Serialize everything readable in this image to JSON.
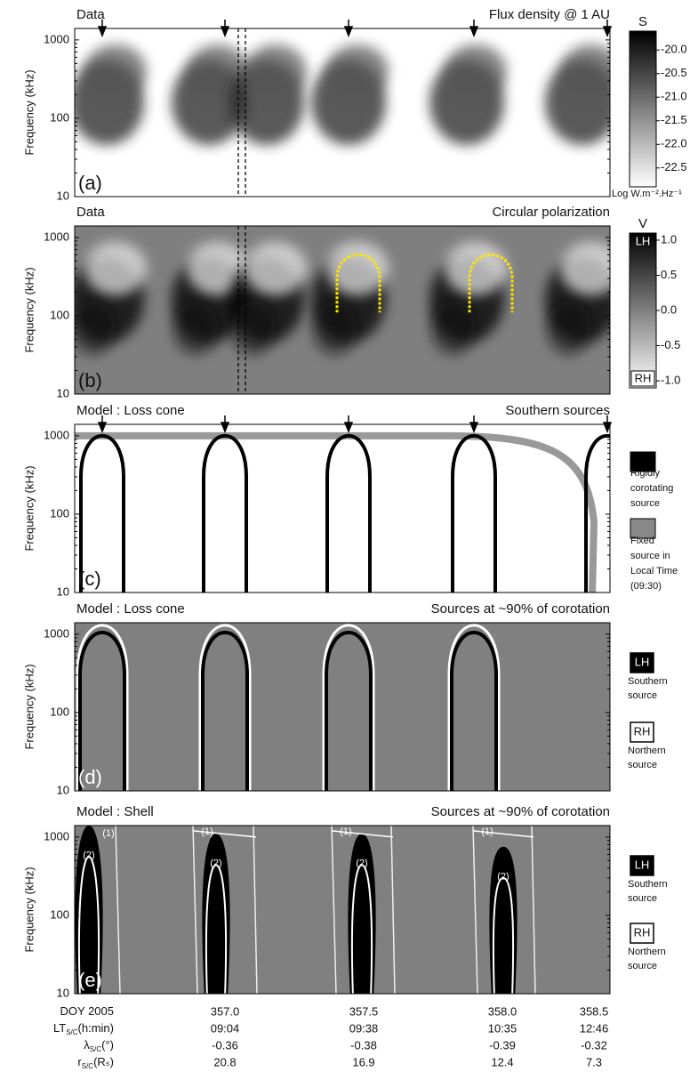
{
  "figure": {
    "panels": [
      {
        "letter": "(a)",
        "title_left": "Data",
        "title_right": "Flux density @ 1 AU",
        "ylabel": "Frequency (kHz)",
        "ylim": [
          10,
          1400
        ],
        "yticks": [
          10,
          100,
          1000
        ],
        "log": true
      },
      {
        "letter": "(b)",
        "title_left": "Data",
        "title_right": "Circular polarization",
        "ylabel": "Frequency (kHz)",
        "ylim": [
          10,
          1400
        ],
        "yticks": [
          10,
          100,
          1000
        ],
        "log": true
      },
      {
        "letter": "(c)",
        "title_left": "Model : Loss cone",
        "title_right": "Southern sources",
        "ylabel": "Frequency (kHz)",
        "ylim": [
          10,
          1400
        ],
        "yticks": [
          10,
          100,
          1000
        ],
        "log": true
      },
      {
        "letter": "(d)",
        "title_left": "Model : Loss cone",
        "title_right": "Sources at ~90% of corotation",
        "ylabel": "Frequency (kHz)",
        "ylim": [
          10,
          1400
        ],
        "yticks": [
          10,
          100,
          1000
        ],
        "log": true
      },
      {
        "letter": "(e)",
        "title_left": "Model : Shell",
        "title_right": "Sources at ~90% of corotation",
        "ylabel": "Frequency (kHz)",
        "ylim": [
          10,
          1400
        ],
        "yticks": [
          10,
          100,
          1000
        ],
        "log": true,
        "annotations": [
          "(1)",
          "(2)"
        ]
      }
    ],
    "colorbars": [
      {
        "title": "S",
        "ylim": [
          -19.6,
          -22.9
        ],
        "ticks": [
          {
            "value": -20,
            "label": "-20.0"
          },
          -20.5,
          {
            "value": -21,
            "label": "-21.0"
          },
          -21.5,
          {
            "value": -22,
            "label": "-22.0"
          },
          -22.5
        ],
        "unit": "Log W.m⁻².Hz⁻¹"
      },
      {
        "title": "V",
        "ylim": [
          1.1,
          -1.1
        ],
        "ticks": [
          {
            "value": 1,
            "label": "1.0"
          },
          0.5,
          {
            "value": 0,
            "label": "0.0"
          },
          -0.5,
          {
            "value": -1,
            "label": "-1.0"
          }
        ],
        "top_label": "LH",
        "bottom_label": "RH"
      }
    ],
    "legend_c": [
      {
        "lines": [
          "Rigidly",
          "corotating",
          "source"
        ]
      },
      {
        "lines": [
          "Fixed",
          "source in",
          "Local Time",
          "(09:30)"
        ]
      }
    ],
    "legend_de": [
      {
        "box": "LH",
        "lines": [
          "Southern",
          "source"
        ]
      },
      {
        "box": "RH",
        "lines": [
          "Northern",
          "source"
        ]
      }
    ],
    "axis_table": [
      {
        "label": "DOY 2005",
        "sub": "",
        "unit": "",
        "values": [
          "357.0",
          "357.5",
          "358.0",
          "358.5"
        ]
      },
      {
        "label": "LT",
        "sub": "S/C",
        "unit": "(h:min)",
        "values": [
          "09:04",
          "09:38",
          "10:35",
          "12:46"
        ]
      },
      {
        "label": "λ",
        "sub": "S/C",
        "unit": "(°)",
        "values": [
          "-0.36",
          "-0.38",
          "-0.39",
          "-0.32"
        ]
      },
      {
        "label": "r",
        "sub": "S/C",
        "unit": "(Rₛ)",
        "values": [
          "20.8",
          "16.9",
          "12.4",
          "7.3"
        ]
      }
    ]
  }
}
